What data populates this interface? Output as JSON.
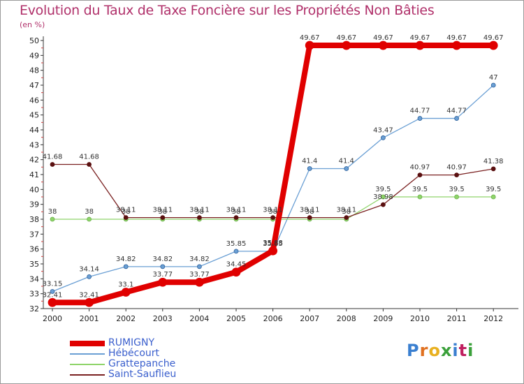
{
  "title": "Evolution du Taux de Taxe Foncière sur les Propriétés Non Bâties",
  "unit_label": "(en %)",
  "logo_text": "Proxiti",
  "chart_data": {
    "type": "line",
    "title": "Evolution du Taux de Taxe Foncière sur les Propriétés Non Bâties",
    "ylabel": "(en %)",
    "xlabel": "",
    "categories": [
      "2000",
      "2001",
      "2002",
      "2003",
      "2004",
      "2005",
      "2006",
      "2007",
      "2008",
      "2009",
      "2010",
      "2011",
      "2012"
    ],
    "ylim": [
      32,
      50
    ],
    "yticks": [
      32,
      33,
      34,
      35,
      36,
      37,
      38,
      39,
      40,
      41,
      42,
      43,
      44,
      45,
      46,
      47,
      48,
      49,
      50
    ],
    "grid": false,
    "legend_position": "bottom-left",
    "series": [
      {
        "name": "RUMIGNY",
        "color": "#e00000",
        "values": [
          32.41,
          32.41,
          33.1,
          33.77,
          33.77,
          34.45,
          35.88,
          49.67,
          49.67,
          49.67,
          49.67,
          49.67,
          49.67
        ]
      },
      {
        "name": "Hébécourt",
        "color": "#6a9fd4",
        "values": [
          33.15,
          34.14,
          34.82,
          34.82,
          34.82,
          35.85,
          35.85,
          41.4,
          41.4,
          43.47,
          44.77,
          44.77,
          47
        ]
      },
      {
        "name": "Grattepanche",
        "color": "#8fd46a",
        "values": [
          38,
          38,
          38,
          38,
          38,
          38,
          38,
          38,
          38,
          39.5,
          39.5,
          39.5,
          39.5
        ]
      },
      {
        "name": "Saint-Sauflieu",
        "color": "#7a2020",
        "values": [
          41.68,
          41.68,
          38.11,
          38.11,
          38.11,
          38.11,
          38.11,
          38.11,
          38.11,
          38.98,
          40.97,
          40.97,
          41.38
        ]
      }
    ]
  }
}
